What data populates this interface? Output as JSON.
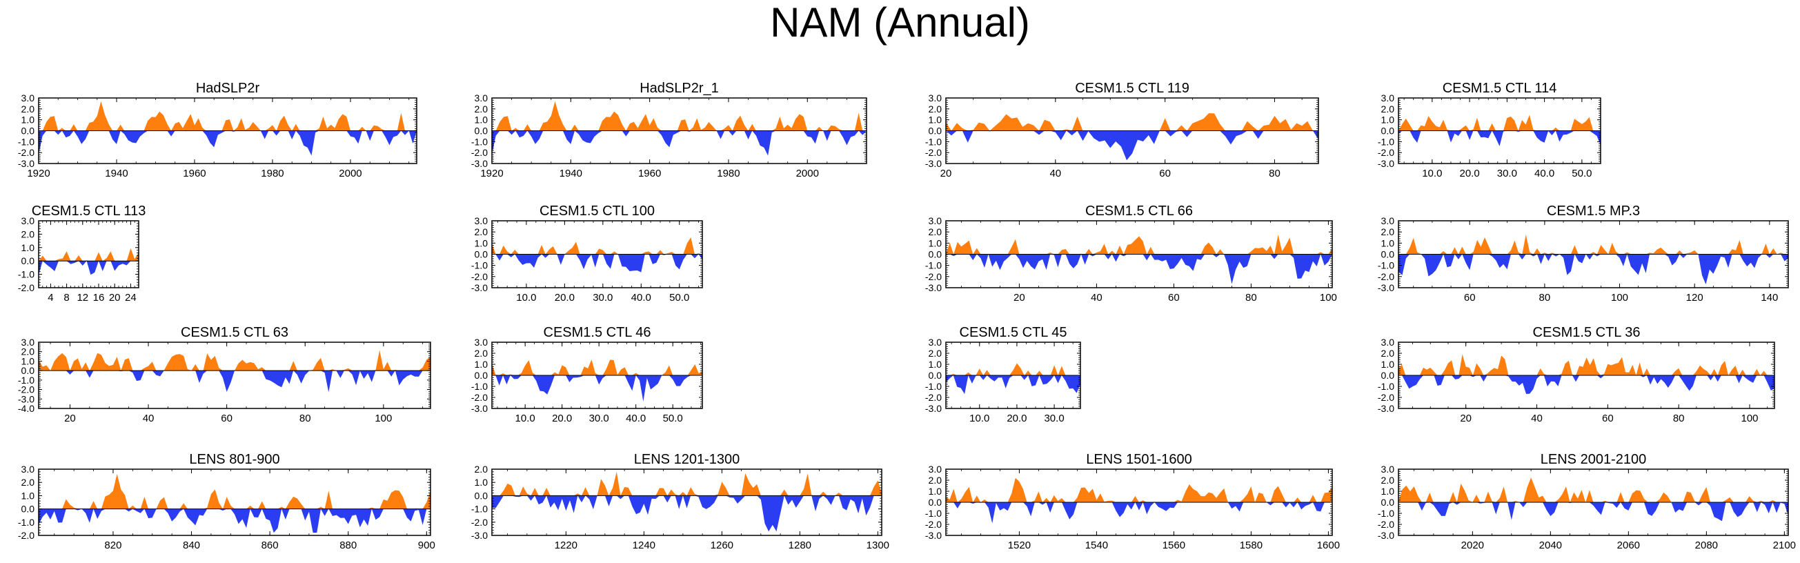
{
  "title": "NAM (Annual)",
  "colors": {
    "positive": "#ff7f0e",
    "negative": "#2b3df0",
    "frame": "#000000"
  },
  "chart_data": [
    {
      "type": "area",
      "title": "HadSLP2r",
      "xlim": [
        1920,
        2017
      ],
      "ylim": [
        -3,
        3
      ],
      "yticks": [
        "3.0",
        "2.0",
        "1.0",
        "0.0",
        "-1.0",
        "-2.0",
        "-3.0"
      ],
      "xtick_values": [
        1920,
        1940,
        1960,
        1980,
        2000
      ],
      "xtick_labels": [
        "1920",
        "1940",
        "1960",
        "1980",
        "2000"
      ],
      "seed": 11
    },
    {
      "type": "area",
      "title": "HadSLP2r_1",
      "xlim": [
        1920,
        2015
      ],
      "ylim": [
        -3,
        3
      ],
      "yticks": [
        "3.0",
        "2.0",
        "1.0",
        "0.0",
        "-1.0",
        "-2.0",
        "-3.0"
      ],
      "xtick_values": [
        1920,
        1940,
        1960,
        1980,
        2000
      ],
      "xtick_labels": [
        "1920",
        "1940",
        "1960",
        "1980",
        "2000"
      ],
      "seed": 11
    },
    {
      "type": "area",
      "title": "CESM1.5 CTL 119",
      "xlim": [
        20,
        88
      ],
      "ylim": [
        -3,
        3
      ],
      "yticks": [
        "3.0",
        "2.0",
        "1.0",
        "0.0",
        "-1.0",
        "-2.0",
        "-3.0"
      ],
      "xtick_values": [
        20,
        40,
        60,
        80
      ],
      "xtick_labels": [
        "20",
        "40",
        "60",
        "80"
      ],
      "seed": 23
    },
    {
      "type": "area",
      "title": "CESM1.5 CTL 114",
      "xlim": [
        1,
        55
      ],
      "ylim": [
        -3,
        3
      ],
      "yticks": [
        "3.0",
        "2.0",
        "1.0",
        "0.0",
        "-1.0",
        "-2.0",
        "-3.0"
      ],
      "xtick_values": [
        10,
        20,
        30,
        40,
        50
      ],
      "xtick_labels": [
        "10.0",
        "20.0",
        "30.0",
        "40.0",
        "50.0"
      ],
      "seed": 31
    },
    {
      "type": "area",
      "title": "CESM1.5 CTL 113",
      "xlim": [
        1,
        26
      ],
      "ylim": [
        -2,
        3
      ],
      "yticks": [
        "3.0",
        "2.0",
        "1.0",
        "0.0",
        "-1.0",
        "-2.0"
      ],
      "xtick_values": [
        4,
        8,
        12,
        16,
        20,
        24
      ],
      "xtick_labels": [
        "4",
        "8",
        "12",
        "16",
        "20",
        "24"
      ],
      "seed": 41
    },
    {
      "type": "area",
      "title": "CESM1.5 CTL 100",
      "xlim": [
        1,
        56
      ],
      "ylim": [
        -3,
        3
      ],
      "yticks": [
        "3.0",
        "2.0",
        "1.0",
        "0.0",
        "-1.0",
        "-2.0",
        "-3.0"
      ],
      "xtick_values": [
        10,
        20,
        30,
        40,
        50
      ],
      "xtick_labels": [
        "10.0",
        "20.0",
        "30.0",
        "40.0",
        "50.0"
      ],
      "seed": 53
    },
    {
      "type": "area",
      "title": "CESM1.5 CTL 66",
      "xlim": [
        1,
        101
      ],
      "ylim": [
        -3,
        3
      ],
      "yticks": [
        "3.0",
        "2.0",
        "1.0",
        "0.0",
        "-1.0",
        "-2.0",
        "-3.0"
      ],
      "xtick_values": [
        20,
        40,
        60,
        80,
        100
      ],
      "xtick_labels": [
        "20",
        "40",
        "60",
        "80",
        "100"
      ],
      "seed": 61
    },
    {
      "type": "area",
      "title": "CESM1.5 MP.3",
      "xlim": [
        41,
        145
      ],
      "ylim": [
        -3,
        3
      ],
      "yticks": [
        "3.0",
        "2.0",
        "1.0",
        "0.0",
        "-1.0",
        "-2.0",
        "-3.0"
      ],
      "xtick_values": [
        60,
        80,
        100,
        120,
        140
      ],
      "xtick_labels": [
        "60",
        "80",
        "100",
        "120",
        "140"
      ],
      "seed": 71
    },
    {
      "type": "area",
      "title": "CESM1.5 CTL 63",
      "xlim": [
        12,
        112
      ],
      "ylim": [
        -4,
        3
      ],
      "yticks": [
        "3.0",
        "2.0",
        "1.0",
        "0.0",
        "-1.0",
        "-2.0",
        "-3.0",
        "-4.0"
      ],
      "xtick_values": [
        20,
        40,
        60,
        80,
        100
      ],
      "xtick_labels": [
        "20",
        "40",
        "60",
        "80",
        "100"
      ],
      "seed": 83
    },
    {
      "type": "area",
      "title": "CESM1.5 CTL 46",
      "xlim": [
        1,
        58
      ],
      "ylim": [
        -3,
        3
      ],
      "yticks": [
        "3.0",
        "2.0",
        "1.0",
        "0.0",
        "-1.0",
        "-2.0",
        "-3.0"
      ],
      "xtick_values": [
        10,
        20,
        30,
        40,
        50
      ],
      "xtick_labels": [
        "10.0",
        "20.0",
        "30.0",
        "40.0",
        "50.0"
      ],
      "seed": 97
    },
    {
      "type": "area",
      "title": "CESM1.5 CTL 45",
      "xlim": [
        1,
        37
      ],
      "ylim": [
        -3,
        3
      ],
      "yticks": [
        "3.0",
        "2.0",
        "1.0",
        "0.0",
        "-1.0",
        "-2.0",
        "-3.0"
      ],
      "xtick_values": [
        10,
        20,
        30
      ],
      "xtick_labels": [
        "10.0",
        "20.0",
        "30.0"
      ],
      "seed": 103
    },
    {
      "type": "area",
      "title": "CESM1.5 CTL 36",
      "xlim": [
        1,
        107
      ],
      "ylim": [
        -3,
        3
      ],
      "yticks": [
        "3.0",
        "2.0",
        "1.0",
        "0.0",
        "-1.0",
        "-2.0",
        "-3.0"
      ],
      "xtick_values": [
        20,
        40,
        60,
        80,
        100
      ],
      "xtick_labels": [
        "20",
        "40",
        "60",
        "80",
        "100"
      ],
      "seed": 109
    },
    {
      "type": "area",
      "title": "LENS 801-900",
      "xlim": [
        801,
        901
      ],
      "ylim": [
        -2,
        3
      ],
      "yticks": [
        "3.0",
        "2.0",
        "1.0",
        "0.0",
        "-1.0",
        "-2.0"
      ],
      "xtick_values": [
        820,
        840,
        860,
        880,
        900
      ],
      "xtick_labels": [
        "820",
        "840",
        "860",
        "880",
        "900"
      ],
      "seed": 127
    },
    {
      "type": "area",
      "title": "LENS 1201-1300",
      "xlim": [
        1201,
        1301
      ],
      "ylim": [
        -3,
        2
      ],
      "yticks": [
        "2.0",
        "1.0",
        "0.0",
        "-1.0",
        "-2.0",
        "-3.0"
      ],
      "xtick_values": [
        1220,
        1240,
        1260,
        1280,
        1300
      ],
      "xtick_labels": [
        "1220",
        "1240",
        "1260",
        "1280",
        "1300"
      ],
      "seed": 131
    },
    {
      "type": "area",
      "title": "LENS 1501-1600",
      "xlim": [
        1501,
        1601
      ],
      "ylim": [
        -3,
        3
      ],
      "yticks": [
        "3.0",
        "2.0",
        "1.0",
        "0.0",
        "-1.0",
        "-2.0",
        "-3.0"
      ],
      "xtick_values": [
        1520,
        1540,
        1560,
        1580,
        1600
      ],
      "xtick_labels": [
        "1520",
        "1540",
        "1560",
        "1580",
        "1600"
      ],
      "seed": 137
    },
    {
      "type": "area",
      "title": "LENS 2001-2100",
      "xlim": [
        2001,
        2101
      ],
      "ylim": [
        -3,
        3
      ],
      "yticks": [
        "3.0",
        "2.0",
        "1.0",
        "0.0",
        "-1.0",
        "-2.0",
        "-3.0"
      ],
      "xtick_values": [
        2020,
        2040,
        2060,
        2080,
        2100
      ],
      "xtick_labels": [
        "2020",
        "2040",
        "2060",
        "2080",
        "2100"
      ],
      "seed": 149
    }
  ]
}
